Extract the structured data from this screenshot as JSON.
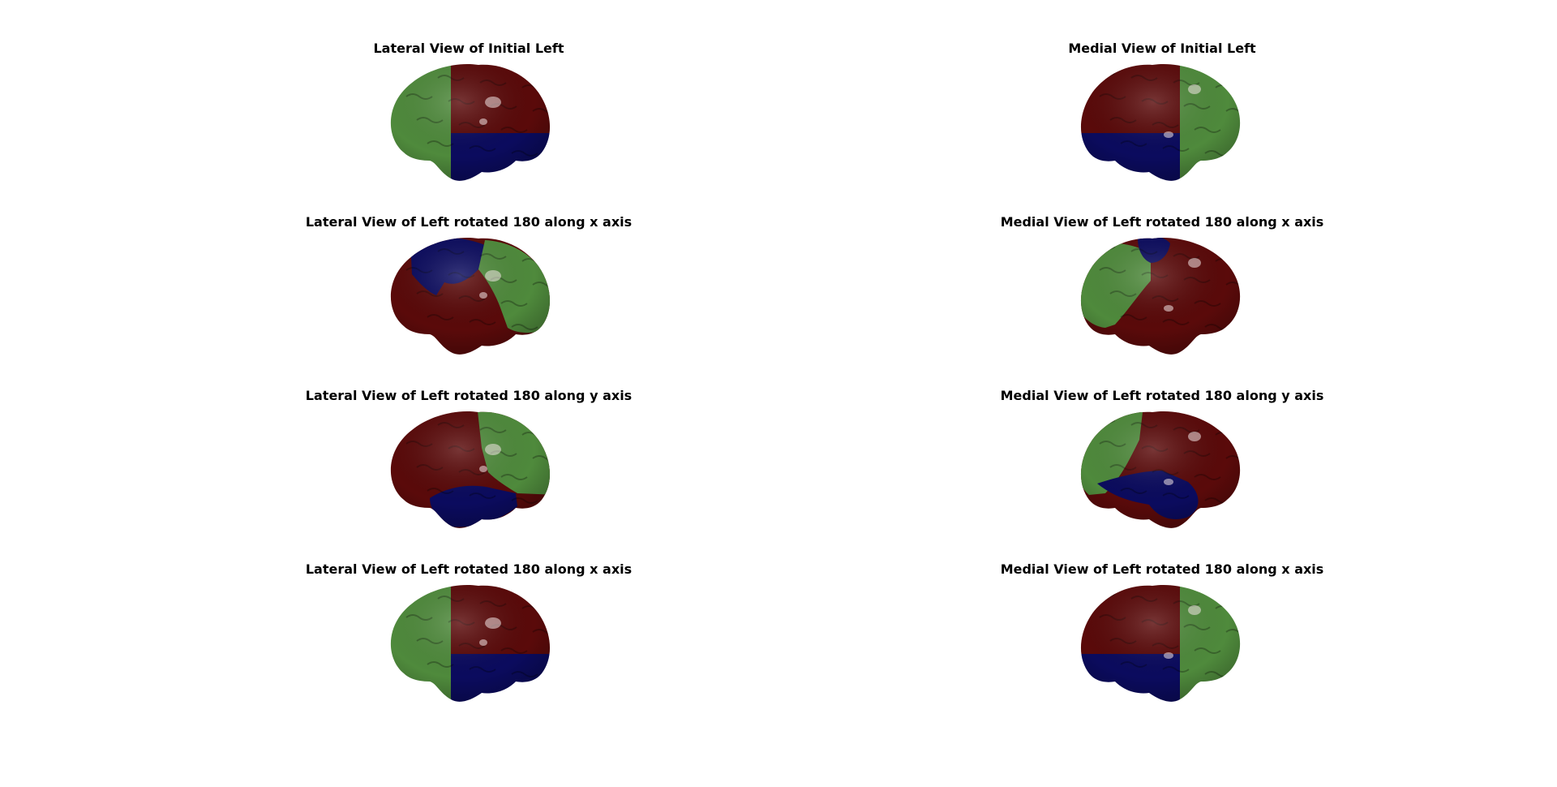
{
  "colors": {
    "green": "#4f8a3c",
    "red": "#5a0a0a",
    "blue": "#0b0b5e",
    "highlight": "#f2e6e6"
  },
  "panels": [
    {
      "title": "Lateral View of Initial Left",
      "view": "lateral",
      "pattern": "initial-lateral"
    },
    {
      "title": "Medial View of Initial Left",
      "view": "medial",
      "pattern": "initial-medial"
    },
    {
      "title": "Lateral View of Left rotated 180 along x axis",
      "view": "lateral",
      "pattern": "rotx-lateral"
    },
    {
      "title": "Medial View of Left rotated 180 along x axis",
      "view": "medial",
      "pattern": "rotx-medial"
    },
    {
      "title": "Lateral View of Left rotated 180 along y axis",
      "view": "lateral",
      "pattern": "roty-lateral"
    },
    {
      "title": "Medial View of Left rotated 180 along y axis",
      "view": "medial",
      "pattern": "roty-medial"
    },
    {
      "title": "Lateral View of Left rotated 180 along x axis",
      "view": "lateral",
      "pattern": "initial-lateral"
    },
    {
      "title": "Medial View of Left rotated 180 along x axis",
      "view": "medial",
      "pattern": "initial-medial"
    }
  ]
}
